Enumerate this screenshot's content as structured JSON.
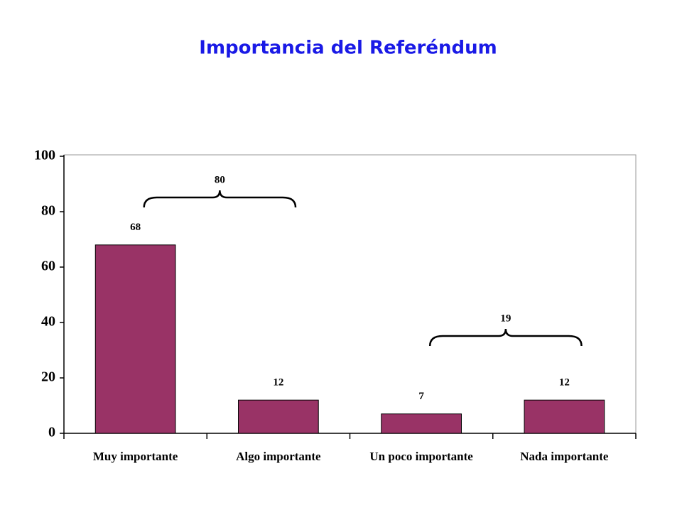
{
  "chart_data": {
    "type": "bar",
    "title": "Importancia del Referéndum",
    "categories": [
      "Muy importante",
      "Algo importante",
      "Un poco importante",
      "Nada importante"
    ],
    "values": [
      68,
      12,
      7,
      12
    ],
    "color": "#993366",
    "ylim": [
      0,
      100
    ],
    "yticks": [
      0,
      20,
      40,
      60,
      80,
      100
    ],
    "annotations": [
      80,
      19
    ]
  }
}
